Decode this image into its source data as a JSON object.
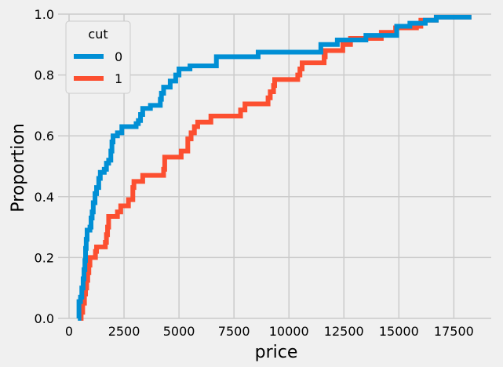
{
  "chart_data": {
    "type": "line",
    "title": "",
    "xlabel": "price",
    "ylabel": "Proportion",
    "xlim": [
      -500,
      19200
    ],
    "ylim": [
      0,
      1
    ],
    "x_ticks": [
      0,
      2500,
      5000,
      7500,
      10000,
      12500,
      15000,
      17500
    ],
    "y_ticks": [
      0.0,
      0.2,
      0.4,
      0.6,
      0.8,
      1.0
    ],
    "x_tick_labels": [
      "0",
      "2500",
      "5000",
      "7500",
      "10000",
      "12500",
      "15000",
      "17500"
    ],
    "y_tick_labels": [
      "0.0",
      "0.2",
      "0.4",
      "0.6",
      "0.8",
      "1.0"
    ],
    "grid": true,
    "legend": {
      "title": "cut",
      "location": "upper-left"
    },
    "series": [
      {
        "name": "0",
        "color": "#008fd5",
        "points": [
          [
            400,
            0.0
          ],
          [
            450,
            0.055
          ],
          [
            520,
            0.07
          ],
          [
            580,
            0.1
          ],
          [
            640,
            0.13
          ],
          [
            680,
            0.16
          ],
          [
            720,
            0.19
          ],
          [
            750,
            0.23
          ],
          [
            780,
            0.26
          ],
          [
            820,
            0.29
          ],
          [
            950,
            0.3
          ],
          [
            1000,
            0.33
          ],
          [
            1050,
            0.35
          ],
          [
            1100,
            0.38
          ],
          [
            1180,
            0.41
          ],
          [
            1250,
            0.43
          ],
          [
            1350,
            0.46
          ],
          [
            1420,
            0.48
          ],
          [
            1600,
            0.49
          ],
          [
            1700,
            0.51
          ],
          [
            1800,
            0.52
          ],
          [
            1900,
            0.55
          ],
          [
            1950,
            0.58
          ],
          [
            2000,
            0.6
          ],
          [
            2200,
            0.61
          ],
          [
            2400,
            0.63
          ],
          [
            3050,
            0.64
          ],
          [
            3150,
            0.65
          ],
          [
            3250,
            0.67
          ],
          [
            3350,
            0.69
          ],
          [
            3700,
            0.7
          ],
          [
            4150,
            0.72
          ],
          [
            4200,
            0.74
          ],
          [
            4300,
            0.76
          ],
          [
            4600,
            0.78
          ],
          [
            4850,
            0.8
          ],
          [
            5000,
            0.82
          ],
          [
            5200,
            0.82
          ],
          [
            5500,
            0.83
          ],
          [
            6700,
            0.86
          ],
          [
            8600,
            0.875
          ],
          [
            11300,
            0.875
          ],
          [
            11450,
            0.9
          ],
          [
            12100,
            0.9
          ],
          [
            12200,
            0.915
          ],
          [
            13500,
            0.93
          ],
          [
            14900,
            0.96
          ],
          [
            15500,
            0.97
          ],
          [
            16200,
            0.98
          ],
          [
            16700,
            0.99
          ],
          [
            18300,
            0.99
          ]
        ]
      },
      {
        "name": "1",
        "color": "#fc4f30",
        "points": [
          [
            450,
            0.0
          ],
          [
            550,
            0.02
          ],
          [
            620,
            0.05
          ],
          [
            700,
            0.08
          ],
          [
            750,
            0.1
          ],
          [
            800,
            0.125
          ],
          [
            850,
            0.15
          ],
          [
            900,
            0.175
          ],
          [
            950,
            0.2
          ],
          [
            1200,
            0.22
          ],
          [
            1250,
            0.235
          ],
          [
            1650,
            0.25
          ],
          [
            1700,
            0.275
          ],
          [
            1750,
            0.3
          ],
          [
            1800,
            0.335
          ],
          [
            2200,
            0.35
          ],
          [
            2350,
            0.37
          ],
          [
            2700,
            0.39
          ],
          [
            2900,
            0.43
          ],
          [
            2950,
            0.45
          ],
          [
            3350,
            0.47
          ],
          [
            4300,
            0.49
          ],
          [
            4350,
            0.53
          ],
          [
            5100,
            0.55
          ],
          [
            5400,
            0.59
          ],
          [
            5550,
            0.61
          ],
          [
            5700,
            0.63
          ],
          [
            5850,
            0.645
          ],
          [
            6450,
            0.665
          ],
          [
            7800,
            0.685
          ],
          [
            8000,
            0.705
          ],
          [
            9050,
            0.725
          ],
          [
            9150,
            0.745
          ],
          [
            9300,
            0.765
          ],
          [
            9350,
            0.785
          ],
          [
            10400,
            0.8
          ],
          [
            10500,
            0.82
          ],
          [
            10600,
            0.84
          ],
          [
            11600,
            0.86
          ],
          [
            11650,
            0.88
          ],
          [
            12450,
            0.9
          ],
          [
            12800,
            0.92
          ],
          [
            14200,
            0.94
          ],
          [
            14850,
            0.955
          ],
          [
            15800,
            0.96
          ],
          [
            16000,
            0.98
          ],
          [
            16700,
            0.99
          ],
          [
            18300,
            0.99
          ]
        ]
      }
    ]
  }
}
